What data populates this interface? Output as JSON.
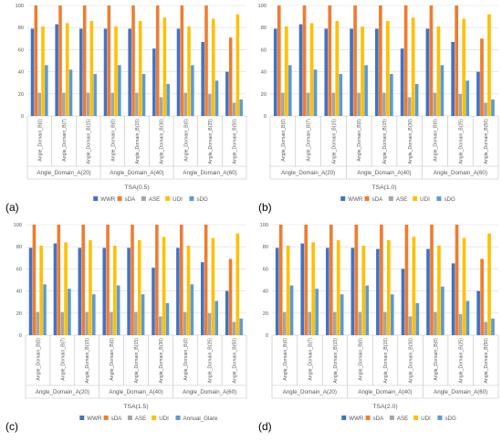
{
  "colors": {
    "WWR": "#4472c4",
    "sDA": "#ed7d31",
    "ASE": "#a5a5a5",
    "UDI": "#ffc000",
    "sDG": "#5b9bd5",
    "Annual_Glare": "#5b9bd5",
    "grid": "#d9d9d9",
    "axis": "#bfbfbf",
    "text": "#595959"
  },
  "chart_data": [
    {
      "type": "bar",
      "panel": "(a)",
      "title": "TSA(0.5)",
      "ylim": [
        0,
        100
      ],
      "yticks": [
        0,
        20,
        40,
        60,
        80,
        100
      ],
      "grid": true,
      "legend_position": "bottom",
      "categories": [
        "Angle_Domain_B(0)",
        "Angle_Domain_B(7)",
        "Angle_Domain_B(15)",
        "Angle_Domain_B(0)",
        "Angle_Domain_B(15)",
        "Angle_Domain_B(30)",
        "Angle_Domain_B(0)",
        "Angle_Domain_B(25)",
        "Angle_Domain_B(50)"
      ],
      "groups": [
        {
          "label": "Angle_Domain_A(20)",
          "span": 3
        },
        {
          "label": "Angle_Domain_A(40)",
          "span": 3
        },
        {
          "label": "Angle_Domain_A(60)",
          "span": 3
        }
      ],
      "series": [
        {
          "name": "WWR",
          "values": [
            79,
            83,
            79,
            79,
            79,
            61,
            79,
            67,
            40
          ]
        },
        {
          "name": "sDA",
          "values": [
            100,
            100,
            100,
            100,
            100,
            100,
            100,
            100,
            71
          ]
        },
        {
          "name": "ASE",
          "values": [
            21,
            21,
            21,
            21,
            21,
            17,
            21,
            20,
            12
          ]
        },
        {
          "name": "UDI",
          "values": [
            81,
            84,
            86,
            81,
            86,
            89,
            81,
            88,
            92
          ]
        },
        {
          "name": "sDG",
          "values": [
            46,
            42,
            38,
            46,
            38,
            29,
            46,
            32,
            15
          ]
        }
      ]
    },
    {
      "type": "bar",
      "panel": "(b)",
      "title": "TSA(1.0)",
      "ylim": [
        0,
        100
      ],
      "yticks": [
        0,
        20,
        40,
        60,
        80,
        100
      ],
      "grid": true,
      "legend_position": "bottom",
      "categories": [
        "Angle_Domain_B(0)",
        "Angle_Domain_B(7)",
        "Angle_Domain_B(15)",
        "Angle_Domain_B(0)",
        "Angle_Domain_B(15)",
        "Angle_Domain_B(30)",
        "Angle_Domain_B(0)",
        "Angle_Domain_B(25)",
        "Angle_Domain_B(50)"
      ],
      "groups": [
        {
          "label": "Angle_Domain_A(20)",
          "span": 3
        },
        {
          "label": "Angle_Domain_A(40)",
          "span": 3
        },
        {
          "label": "Angle_Domain_A(60)",
          "span": 3
        }
      ],
      "series": [
        {
          "name": "WWR",
          "values": [
            79,
            83,
            79,
            79,
            79,
            61,
            79,
            67,
            40
          ]
        },
        {
          "name": "sDA",
          "values": [
            100,
            100,
            100,
            100,
            100,
            100,
            100,
            100,
            70
          ]
        },
        {
          "name": "ASE",
          "values": [
            21,
            21,
            21,
            21,
            21,
            17,
            21,
            20,
            12
          ]
        },
        {
          "name": "UDI",
          "values": [
            81,
            84,
            86,
            81,
            86,
            89,
            81,
            88,
            92
          ]
        },
        {
          "name": "sDG",
          "values": [
            46,
            42,
            38,
            46,
            38,
            29,
            46,
            32,
            15
          ]
        }
      ]
    },
    {
      "type": "bar",
      "panel": "(c)",
      "title": "TSA(1.5)",
      "ylim": [
        0,
        100
      ],
      "yticks": [
        0,
        20,
        40,
        60,
        80,
        100
      ],
      "grid": true,
      "legend_position": "bottom",
      "categories": [
        "Angle_Domain_B(0)",
        "Angle_Domain_B(7)",
        "Angle_Domain_B(15)",
        "Angle_Domain_B(0)",
        "Angle_Domain_B(15)",
        "Angle_Domain_B(30)",
        "Angle_Domain_B(0)",
        "Angle_Domain_B(25)",
        "Angle_Domain_B(50)"
      ],
      "groups": [
        {
          "label": "Angle_Domain_A(20)",
          "span": 3
        },
        {
          "label": "Angle_Domain_A(40)",
          "span": 3
        },
        {
          "label": "Angle_Domain_A(60)",
          "span": 3
        }
      ],
      "series": [
        {
          "name": "WWR",
          "values": [
            79,
            83,
            79,
            79,
            79,
            61,
            79,
            66,
            40
          ]
        },
        {
          "name": "sDA",
          "values": [
            100,
            100,
            100,
            100,
            100,
            100,
            100,
            100,
            69
          ]
        },
        {
          "name": "ASE",
          "values": [
            21,
            21,
            21,
            21,
            21,
            17,
            21,
            20,
            12
          ]
        },
        {
          "name": "UDI",
          "values": [
            81,
            84,
            86,
            81,
            86,
            89,
            81,
            88,
            92
          ]
        },
        {
          "name": "Annual_Glare",
          "values": [
            46,
            42,
            37,
            45,
            37,
            29,
            46,
            31,
            15
          ]
        }
      ]
    },
    {
      "type": "bar",
      "panel": "(d)",
      "title": "TSA(2.0)",
      "ylim": [
        0,
        100
      ],
      "yticks": [
        0,
        20,
        40,
        60,
        80,
        100
      ],
      "grid": true,
      "legend_position": "bottom",
      "categories": [
        "Angle_Domain_B(0)",
        "Angle_Domain_B(7)",
        "Angle_Domain_B(15)",
        "Angle_Domain_B(0)",
        "Angle_Domain_B(15)",
        "Angle_Domain_B(30)",
        "Angle_Domain_B(0)",
        "Angle_Domain_B(25)",
        "Angle_Domain_B(50)"
      ],
      "groups": [
        {
          "label": "Angle_Domain_A(20)",
          "span": 3
        },
        {
          "label": "Angle_Domain_A(40)",
          "span": 3
        },
        {
          "label": "Angle_Domain_A(60)",
          "span": 3
        }
      ],
      "series": [
        {
          "name": "WWR",
          "values": [
            79,
            83,
            79,
            79,
            78,
            60,
            78,
            65,
            40
          ]
        },
        {
          "name": "sDA",
          "values": [
            100,
            100,
            100,
            100,
            100,
            100,
            100,
            100,
            69
          ]
        },
        {
          "name": "ASE",
          "values": [
            21,
            21,
            21,
            21,
            21,
            17,
            21,
            19,
            12
          ]
        },
        {
          "name": "UDI",
          "values": [
            81,
            84,
            86,
            81,
            86,
            89,
            81,
            88,
            92
          ]
        },
        {
          "name": "sDG",
          "values": [
            45,
            42,
            37,
            45,
            37,
            29,
            44,
            31,
            15
          ]
        }
      ]
    }
  ]
}
